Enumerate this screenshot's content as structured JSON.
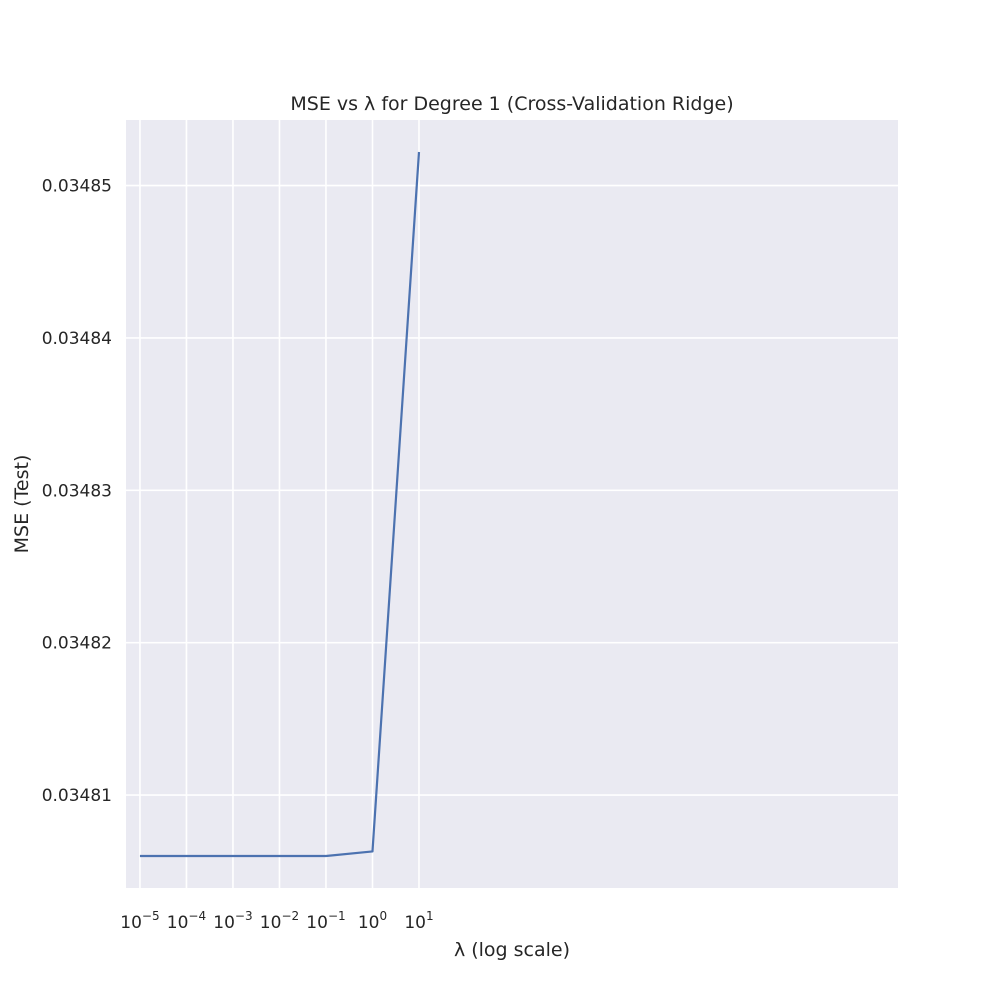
{
  "chart_data": {
    "type": "line",
    "title": "MSE vs λ for Degree 1 (Cross-Validation Ridge)",
    "xlabel": "λ (log scale)",
    "ylabel": "MSE (Test)",
    "xscale": "log",
    "grid": true,
    "x": [
      1e-05,
      0.0001,
      0.001,
      0.01,
      0.1,
      1,
      10
    ],
    "series": [
      {
        "name": "MSE (Test)",
        "color": "#4c72b0",
        "values": [
          0.034806,
          0.034806,
          0.034806,
          0.034806,
          0.034806,
          0.0348063,
          0.0348522
        ]
      }
    ],
    "xticks": [
      {
        "value": 1e-05,
        "base": "10",
        "exp": "−5"
      },
      {
        "value": 0.0001,
        "base": "10",
        "exp": "−4"
      },
      {
        "value": 0.001,
        "base": "10",
        "exp": "−3"
      },
      {
        "value": 0.01,
        "base": "10",
        "exp": "−2"
      },
      {
        "value": 0.1,
        "base": "10",
        "exp": "−1"
      },
      {
        "value": 1,
        "base": "10",
        "exp": "0"
      },
      {
        "value": 10,
        "base": "10",
        "exp": "1"
      }
    ],
    "yticks": [
      {
        "value": 0.03481,
        "label": "0.03481"
      },
      {
        "value": 0.03482,
        "label": "0.03482"
      },
      {
        "value": 0.03483,
        "label": "0.03483"
      },
      {
        "value": 0.03484,
        "label": "0.03484"
      },
      {
        "value": 0.03485,
        "label": "0.03485"
      }
    ],
    "xlim_log10": [
      -5.3,
      11.3
    ],
    "ylim": [
      0.0348039,
      0.0348543
    ],
    "colors": {
      "plot_background": "#eaeaf2",
      "grid": "#ffffff",
      "text": "#262626"
    }
  }
}
